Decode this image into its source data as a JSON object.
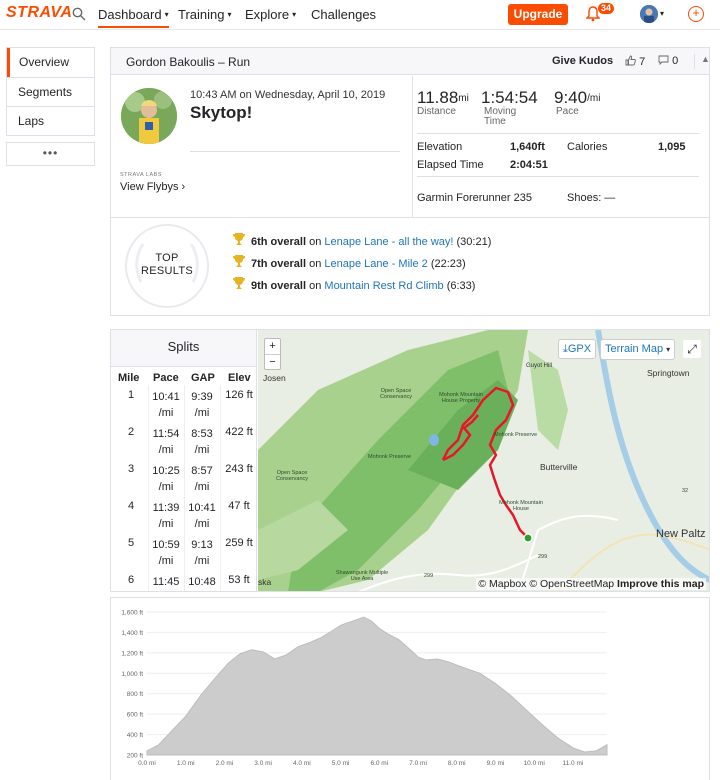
{
  "nav": {
    "logo": "STRAVA",
    "items": [
      {
        "label": "Dashboard",
        "active": true,
        "dropdown": true
      },
      {
        "label": "Training",
        "dropdown": true
      },
      {
        "label": "Explore",
        "dropdown": true
      },
      {
        "label": "Challenges",
        "dropdown": false
      }
    ],
    "upgrade_label": "Upgrade",
    "notification_count": "34",
    "icons": [
      "search-icon",
      "bell-icon",
      "avatar",
      "plus-circle-icon"
    ],
    "accent": "#fc4c02"
  },
  "sidemenu": {
    "items": [
      "Overview",
      "Segments",
      "Laps"
    ],
    "more_label": "•••"
  },
  "activity": {
    "header_title": "Gordon Bakoulis – Run",
    "give_kudos": "Give Kudos",
    "kudos_count": "7",
    "comment_count": "0",
    "datetime": "10:43 AM on Wednesday, April 10, 2019",
    "name": "Skytop!",
    "labs_label": "STRAVA LABS",
    "flybys_label": "View Flybys",
    "stats": {
      "distance": {
        "value": "11.88",
        "unit": "mi",
        "label": "Distance"
      },
      "moving_time": {
        "value": "1:54:54",
        "label": "Moving Time"
      },
      "pace": {
        "value": "9:40",
        "unit": "/mi",
        "label": "Pace"
      },
      "elevation_label": "Elevation",
      "elevation_value": "1,640ft",
      "calories_label": "Calories",
      "calories_value": "1,095",
      "elapsed_label": "Elapsed Time",
      "elapsed_value": "2:04:51",
      "device": "Garmin Forerunner 235",
      "shoes_label": "Shoes: —"
    },
    "top_results": {
      "badge_line1": "TOP",
      "badge_line2": "RESULTS",
      "rows": [
        {
          "rank": "6th overall",
          "on": "on",
          "segment": "Lenape Lane - all the way!",
          "time": "(30:21)"
        },
        {
          "rank": "7th overall",
          "on": "on",
          "segment": "Lenape Lane - Mile 2",
          "time": "(22:23)"
        },
        {
          "rank": "9th overall",
          "on": "on",
          "segment": "Mountain Rest Rd Climb",
          "time": "(6:33)"
        }
      ]
    }
  },
  "splits": {
    "title": "Splits",
    "headers": [
      "Mile",
      "Pace",
      "GAP",
      "Elev"
    ],
    "rows": [
      {
        "mile": "1",
        "pace": "10:41",
        "gap": "9:39",
        "elev": "126 ft"
      },
      {
        "mile": "2",
        "pace": "11:54",
        "gap": "8:53",
        "elev": "422 ft"
      },
      {
        "mile": "3",
        "pace": "10:25",
        "gap": "8:57",
        "elev": "243 ft"
      },
      {
        "mile": "4",
        "pace": "11:39",
        "gap": "10:41",
        "elev": "47 ft"
      },
      {
        "mile": "5",
        "pace": "10:59",
        "gap": "9:13",
        "elev": "259 ft"
      },
      {
        "mile": "6",
        "pace": "11:45",
        "gap": "10:48",
        "elev": "53 ft"
      }
    ],
    "unit": "/mi"
  },
  "map": {
    "zoom_in": "+",
    "zoom_out": "−",
    "gpx_label": "GPX",
    "terrain_label": "Terrain Map",
    "attribution_mapbox": "© Mapbox",
    "attribution_osm": "© OpenStreetMap",
    "improve_label": "Improve this map",
    "places": [
      "Josen",
      "Guyot Hill",
      "Springtown",
      "Open Space Conservancy",
      "Mohonk Mountain House Property",
      "Mohonk Preserve",
      "Butterville",
      "Mohonk Mountain House",
      "New Paltz",
      "Open Space Conservancy",
      "Shawangunk Multiple Use Area",
      "Mohonk Preserve",
      "299",
      "32",
      "299",
      "ska"
    ]
  },
  "chart_data": {
    "type": "area",
    "title": "",
    "xlabel": "",
    "ylabel": "",
    "x_ticks": [
      "0.0 mi",
      "1.0 mi",
      "2.0 mi",
      "3.0 mi",
      "4.0 mi",
      "5.0 mi",
      "6.0 mi",
      "7.0 mi",
      "8.0 mi",
      "9.0 mi",
      "10.0 mi",
      "11.0 mi"
    ],
    "y_ticks": [
      "200 ft",
      "400 ft",
      "600 ft",
      "800 ft",
      "1,000 ft",
      "1,200 ft",
      "1,400 ft",
      "1,600 ft"
    ],
    "xlim": [
      0,
      11.88
    ],
    "ylim": [
      200,
      1600
    ],
    "grid": true,
    "series": [
      {
        "x": [
          0,
          0.3,
          0.6,
          1.0,
          1.4,
          1.8,
          2.1,
          2.4,
          2.7,
          3.0,
          3.3,
          3.6,
          3.9,
          4.2,
          4.5,
          4.8,
          5.0,
          5.3,
          5.6,
          5.8,
          6.0,
          6.2,
          6.5,
          6.8,
          7.0,
          7.2,
          7.5,
          7.8,
          8.0,
          8.3,
          8.6,
          9.0,
          9.4,
          9.8,
          10.2,
          10.6,
          11.0,
          11.3,
          11.6,
          11.88
        ],
        "y": [
          240,
          300,
          420,
          580,
          790,
          970,
          1100,
          1190,
          1230,
          1210,
          1140,
          1180,
          1260,
          1300,
          1350,
          1420,
          1470,
          1510,
          1550,
          1510,
          1440,
          1390,
          1330,
          1230,
          1160,
          1130,
          1140,
          1110,
          1080,
          1040,
          1000,
          900,
          780,
          640,
          500,
          370,
          270,
          230,
          240,
          300
        ]
      }
    ],
    "fill_color": "#cccccc"
  }
}
